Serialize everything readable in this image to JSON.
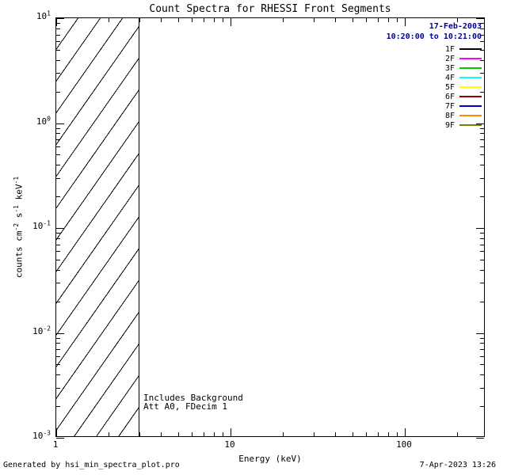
{
  "page": {
    "background": "#ffffff",
    "foreground": "#000000",
    "footer_left": "Generated by hsi_min_spectra_plot.pro",
    "footer_right": "7-Apr-2023 13:26"
  },
  "chart_data": {
    "type": "line",
    "title": "Count Spectra for RHESSI Front Segments",
    "xlabel": "Energy (keV)",
    "ylabel_parts": [
      {
        "text": "counts cm"
      },
      {
        "sup": "-2"
      },
      {
        "text": " s"
      },
      {
        "sup": "-1"
      },
      {
        "text": " keV"
      },
      {
        "sup": "-1"
      }
    ],
    "x_scale": "log",
    "y_scale": "log",
    "xlim": [
      1,
      291
    ],
    "ylim": [
      0.001,
      10
    ],
    "grid": false,
    "x_major_ticks": [
      {
        "value": 1,
        "label": "1"
      },
      {
        "value": 10,
        "label": "10"
      },
      {
        "value": 100,
        "label": "100"
      }
    ],
    "y_major_ticks": [
      {
        "value": 10,
        "base": "10",
        "exp": "1"
      },
      {
        "value": 1,
        "base": "10",
        "exp": "0"
      },
      {
        "value": 0.1,
        "base": "10",
        "exp": "-1"
      },
      {
        "value": 0.01,
        "base": "10",
        "exp": "-2"
      },
      {
        "value": 0.001,
        "base": "10",
        "exp": "-3"
      }
    ],
    "series": [],
    "hatched_region": {
      "x_from": 1,
      "x_to": 3,
      "y_from": 0.001,
      "y_to": 10,
      "pattern": "diagonal-lines",
      "color": "#000000"
    },
    "annotations": [
      "Includes Background",
      "Att A0, FDecim 1"
    ],
    "legend": {
      "position": "top-right",
      "date": "17-Feb-2003",
      "time_range": "10:20:00 to 10:21:00",
      "header_color": "#000099",
      "entries": [
        {
          "label": "1F",
          "color": "#000000"
        },
        {
          "label": "2F",
          "color": "#ff00ff"
        },
        {
          "label": "3F",
          "color": "#00c800"
        },
        {
          "label": "4F",
          "color": "#00ffff"
        },
        {
          "label": "5F",
          "color": "#ffff00"
        },
        {
          "label": "6F",
          "color": "#990000"
        },
        {
          "label": "7F",
          "color": "#0000cc"
        },
        {
          "label": "8F",
          "color": "#ff8c00"
        },
        {
          "label": "9F",
          "color": "#708000"
        }
      ]
    }
  }
}
